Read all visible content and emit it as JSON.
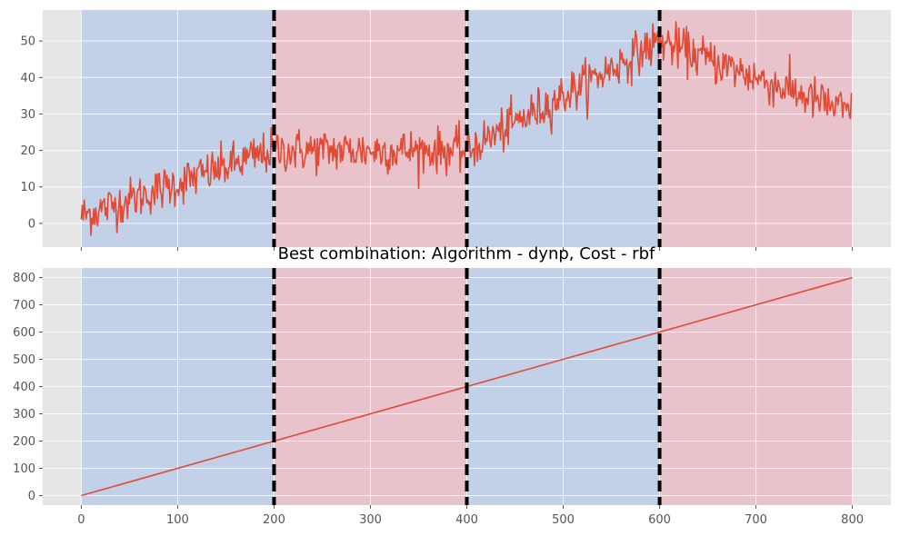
{
  "chart_data": [
    {
      "type": "line",
      "panel": "top",
      "title": "",
      "xlabel": "",
      "ylabel": "",
      "xlim": [
        -40,
        840
      ],
      "ylim": [
        -6.5,
        58.5
      ],
      "x_ticks": [
        0,
        100,
        200,
        300,
        400,
        500,
        600,
        700,
        800
      ],
      "x_tick_labels_visible": false,
      "y_ticks": [
        0,
        10,
        20,
        30,
        40,
        50
      ],
      "y_tick_labels": [
        "0",
        "10",
        "20",
        "30",
        "40",
        "50"
      ],
      "grid": true,
      "series_color": "#E24A33",
      "series_trend": [
        {
          "x": 0,
          "y": 2
        },
        {
          "x": 200,
          "y": 20
        },
        {
          "x": 400,
          "y": 20
        },
        {
          "x": 600,
          "y": 50
        },
        {
          "x": 800,
          "y": 30
        }
      ],
      "noise_amplitude": 3,
      "n_points": 800,
      "regions": [
        {
          "start": 0,
          "end": 200,
          "color": "#C3D1E8"
        },
        {
          "start": 200,
          "end": 400,
          "color": "#E8C3CC"
        },
        {
          "start": 400,
          "end": 600,
          "color": "#C3D1E8"
        },
        {
          "start": 600,
          "end": 800,
          "color": "#E8C3CC"
        }
      ],
      "breakpoints": [
        200,
        400,
        600
      ]
    },
    {
      "type": "line",
      "panel": "bottom",
      "title": "Best combination: Algorithm - dynp, Cost - rbf",
      "xlabel": "",
      "ylabel": "",
      "xlim": [
        -40,
        840
      ],
      "ylim": [
        -35,
        835
      ],
      "x_ticks": [
        0,
        100,
        200,
        300,
        400,
        500,
        600,
        700,
        800
      ],
      "x_tick_labels": [
        "0",
        "100",
        "200",
        "300",
        "400",
        "500",
        "600",
        "700",
        "800"
      ],
      "y_ticks": [
        0,
        100,
        200,
        300,
        400,
        500,
        600,
        700,
        800
      ],
      "y_tick_labels": [
        "0",
        "100",
        "200",
        "300",
        "400",
        "500",
        "600",
        "700",
        "800"
      ],
      "grid": true,
      "series_color": "#E24A33",
      "series": [
        {
          "x": [
            0,
            800
          ],
          "y": [
            0,
            800
          ]
        }
      ],
      "regions": [
        {
          "start": 0,
          "end": 200,
          "color": "#C3D1E8"
        },
        {
          "start": 200,
          "end": 400,
          "color": "#E8C3CC"
        },
        {
          "start": 400,
          "end": 600,
          "color": "#C3D1E8"
        },
        {
          "start": 600,
          "end": 800,
          "color": "#E8C3CC"
        }
      ],
      "breakpoints": [
        200,
        400,
        600
      ]
    }
  ],
  "style": {
    "axes_background": "#E5E5E5",
    "grid_color": "#FFFFFF",
    "breakpoint_color": "#000000"
  }
}
